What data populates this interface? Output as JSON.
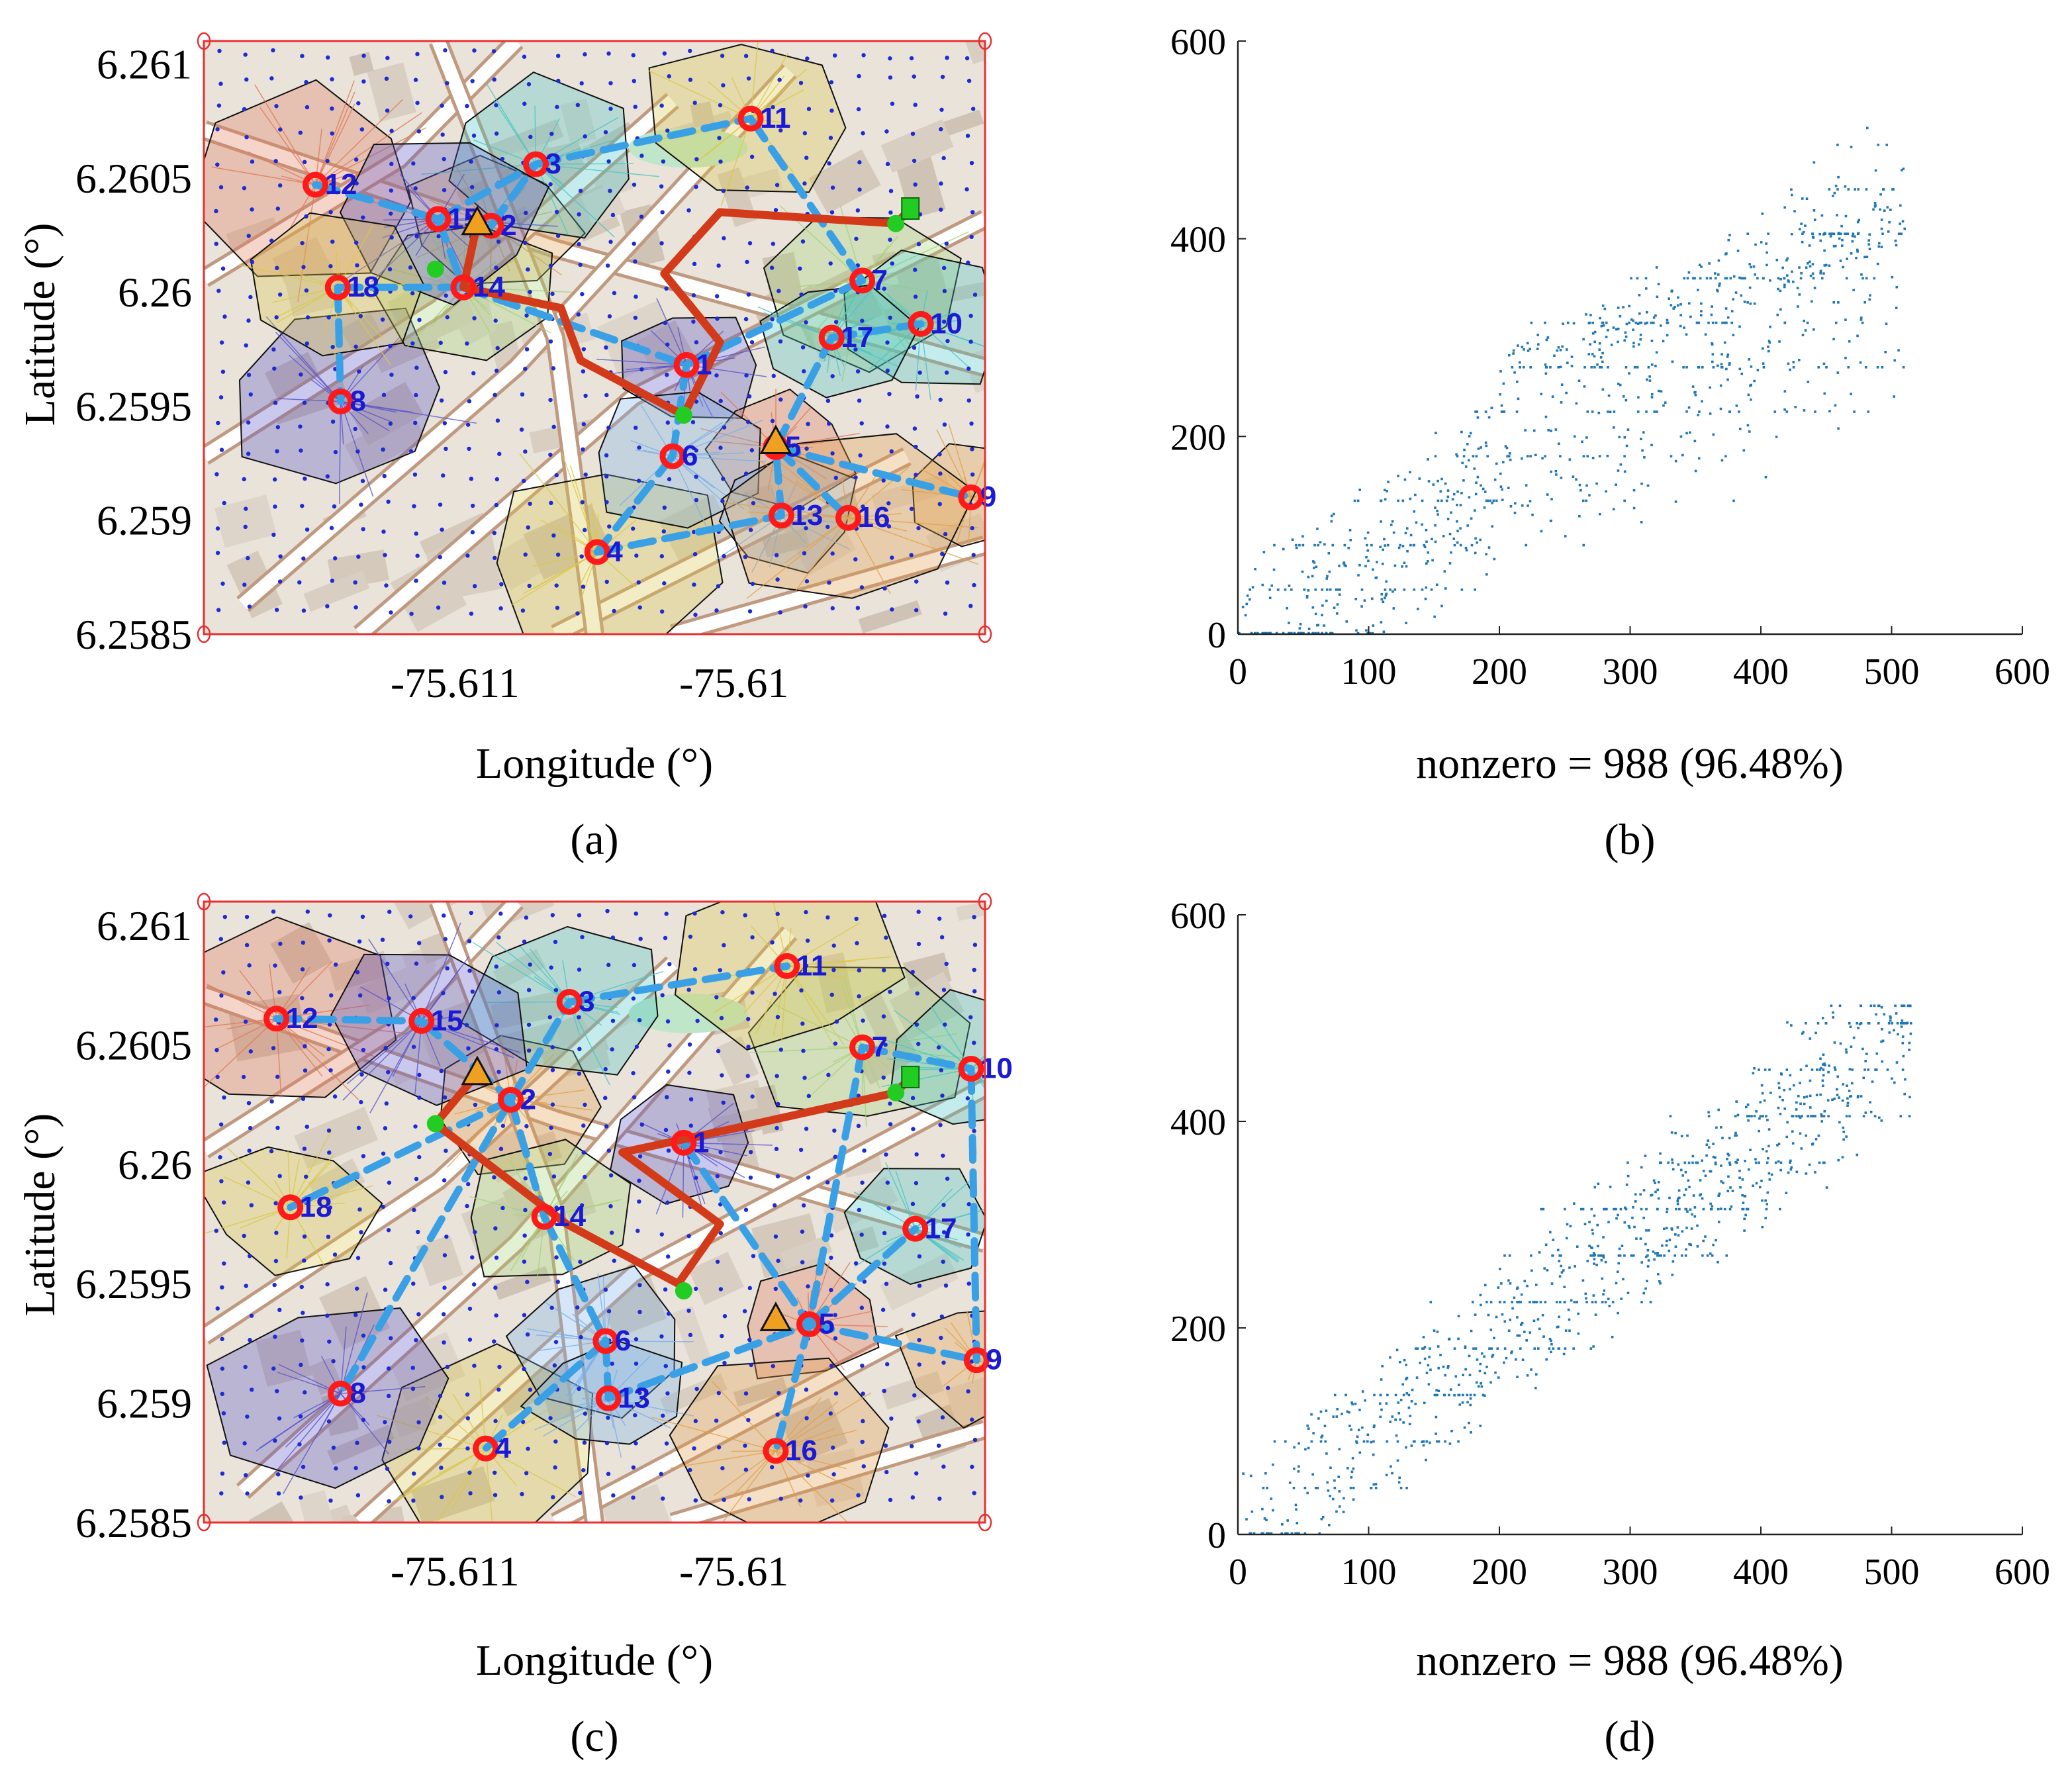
{
  "figure": {
    "panels": [
      "(a)",
      "(b)",
      "(c)",
      "(d)"
    ]
  },
  "colors": {
    "node_ring": "#ff1a1a",
    "node_label": "#1a1ad6",
    "link_dashed": "#3aa0e6",
    "route": "#d23a1a",
    "triangle": "#f0a020",
    "sink": "#22cc22",
    "spy_points": "#1f77b4",
    "map_border": "#e83030"
  },
  "chart_data": [
    {
      "panel": "(a)",
      "type": "scatter",
      "xlabel": "Longitude (°)",
      "ylabel": "Latitude (°)",
      "x_ticks": [
        "-75.611",
        "-75.61"
      ],
      "x_tick_values": [
        -75.611,
        -75.61
      ],
      "y_ticks": [
        "6.261",
        "6.2605",
        "6.26",
        "6.2595",
        "6.259",
        "6.2585"
      ],
      "y_tick_values": [
        6.261,
        6.2605,
        6.26,
        6.2595,
        6.259,
        6.2585
      ],
      "xlim": [
        -75.6119,
        -75.6091
      ],
      "ylim": [
        6.2585,
        6.2611
      ],
      "nodes": [
        {
          "id": "1",
          "lon": -75.61017,
          "lat": 6.25968
        },
        {
          "id": "2",
          "lon": -75.61087,
          "lat": 6.26029
        },
        {
          "id": "3",
          "lon": -75.61071,
          "lat": 6.26056
        },
        {
          "id": "4",
          "lon": -75.61049,
          "lat": 6.25886
        },
        {
          "id": "5",
          "lon": -75.60985,
          "lat": 6.25932
        },
        {
          "id": "6",
          "lon": -75.61022,
          "lat": 6.25928
        },
        {
          "id": "7",
          "lon": -75.60954,
          "lat": 6.26005
        },
        {
          "id": "8",
          "lon": -75.61141,
          "lat": 6.25952
        },
        {
          "id": "9",
          "lon": -75.60915,
          "lat": 6.2591
        },
        {
          "id": "10",
          "lon": -75.60933,
          "lat": 6.25986
        },
        {
          "id": "11",
          "lon": -75.60994,
          "lat": 6.26076
        },
        {
          "id": "12",
          "lon": -75.6115,
          "lat": 6.26047
        },
        {
          "id": "13",
          "lon": -75.60983,
          "lat": 6.25902
        },
        {
          "id": "14",
          "lon": -75.61097,
          "lat": 6.26002
        },
        {
          "id": "15",
          "lon": -75.61106,
          "lat": 6.26032
        },
        {
          "id": "16",
          "lon": -75.60959,
          "lat": 6.25901
        },
        {
          "id": "17",
          "lon": -75.60965,
          "lat": 6.2598
        },
        {
          "id": "18",
          "lon": -75.61142,
          "lat": 6.26002
        }
      ],
      "triangles": [
        {
          "lon": -75.61092,
          "lat": 6.2603
        },
        {
          "lon": -75.60985,
          "lat": 6.25934
        }
      ],
      "sink": {
        "lon": -75.60937,
        "lat": 6.26036
      },
      "junctions": [
        {
          "lon": -75.61107,
          "lat": 6.2601
        },
        {
          "lon": -75.61018,
          "lat": 6.25946
        },
        {
          "lon": -75.60942,
          "lat": 6.2603
        }
      ]
    },
    {
      "panel": "(b)",
      "type": "scatter",
      "title": "",
      "xlabel": "nonzero = 988 (96.48%)",
      "ylabel": "",
      "xlim": [
        0,
        600
      ],
      "ylim": [
        0,
        600
      ],
      "x_ticks": [
        0,
        100,
        200,
        300,
        400,
        500,
        600
      ],
      "y_ticks": [
        0,
        200,
        400,
        600
      ],
      "y_reversed": false,
      "marker_color": "#1f77b4",
      "point_count_approx": 988
    },
    {
      "panel": "(c)",
      "type": "scatter",
      "xlabel": "Longitude (°)",
      "ylabel": "Latitude (°)",
      "x_ticks": [
        "-75.611",
        "-75.61"
      ],
      "x_tick_values": [
        -75.611,
        -75.61
      ],
      "y_ticks": [
        "6.261",
        "6.2605",
        "6.26",
        "6.2595",
        "6.259",
        "6.2585"
      ],
      "y_tick_values": [
        6.261,
        6.2605,
        6.26,
        6.2595,
        6.259,
        6.2585
      ],
      "xlim": [
        -75.6119,
        -75.6091
      ],
      "ylim": [
        6.2585,
        6.2611
      ],
      "nodes": [
        {
          "id": "1",
          "lon": -75.61018,
          "lat": 6.26009
        },
        {
          "id": "2",
          "lon": -75.6108,
          "lat": 6.26027
        },
        {
          "id": "3",
          "lon": -75.61059,
          "lat": 6.26068
        },
        {
          "id": "4",
          "lon": -75.61089,
          "lat": 6.25881
        },
        {
          "id": "5",
          "lon": -75.60973,
          "lat": 6.25933
        },
        {
          "id": "6",
          "lon": -75.61046,
          "lat": 6.25926
        },
        {
          "id": "7",
          "lon": -75.60954,
          "lat": 6.26049
        },
        {
          "id": "8",
          "lon": -75.61141,
          "lat": 6.25904
        },
        {
          "id": "9",
          "lon": -75.60913,
          "lat": 6.25918
        },
        {
          "id": "10",
          "lon": -75.60915,
          "lat": 6.2604
        },
        {
          "id": "11",
          "lon": -75.60981,
          "lat": 6.26083
        },
        {
          "id": "12",
          "lon": -75.61164,
          "lat": 6.26061
        },
        {
          "id": "13",
          "lon": -75.61045,
          "lat": 6.25902
        },
        {
          "id": "14",
          "lon": -75.61068,
          "lat": 6.25978
        },
        {
          "id": "15",
          "lon": -75.61112,
          "lat": 6.2606
        },
        {
          "id": "16",
          "lon": -75.60985,
          "lat": 6.2588
        },
        {
          "id": "17",
          "lon": -75.60935,
          "lat": 6.25973
        },
        {
          "id": "18",
          "lon": -75.61159,
          "lat": 6.25982
        }
      ],
      "triangles": [
        {
          "lon": -75.61092,
          "lat": 6.26038
        },
        {
          "lon": -75.60985,
          "lat": 6.25935
        }
      ],
      "sink": {
        "lon": -75.60937,
        "lat": 6.26036
      },
      "junctions": [
        {
          "lon": -75.61107,
          "lat": 6.26017
        },
        {
          "lon": -75.61018,
          "lat": 6.25947
        },
        {
          "lon": -75.60942,
          "lat": 6.2603
        }
      ]
    },
    {
      "panel": "(d)",
      "type": "scatter",
      "title": "",
      "xlabel": "nonzero = 988 (96.48%)",
      "ylabel": "",
      "xlim": [
        0,
        600
      ],
      "ylim": [
        0,
        600
      ],
      "x_ticks": [
        0,
        100,
        200,
        300,
        400,
        500,
        600
      ],
      "y_ticks": [
        0,
        200,
        400,
        600
      ],
      "y_reversed": false,
      "marker_color": "#1f77b4",
      "point_count_approx": 988
    }
  ]
}
